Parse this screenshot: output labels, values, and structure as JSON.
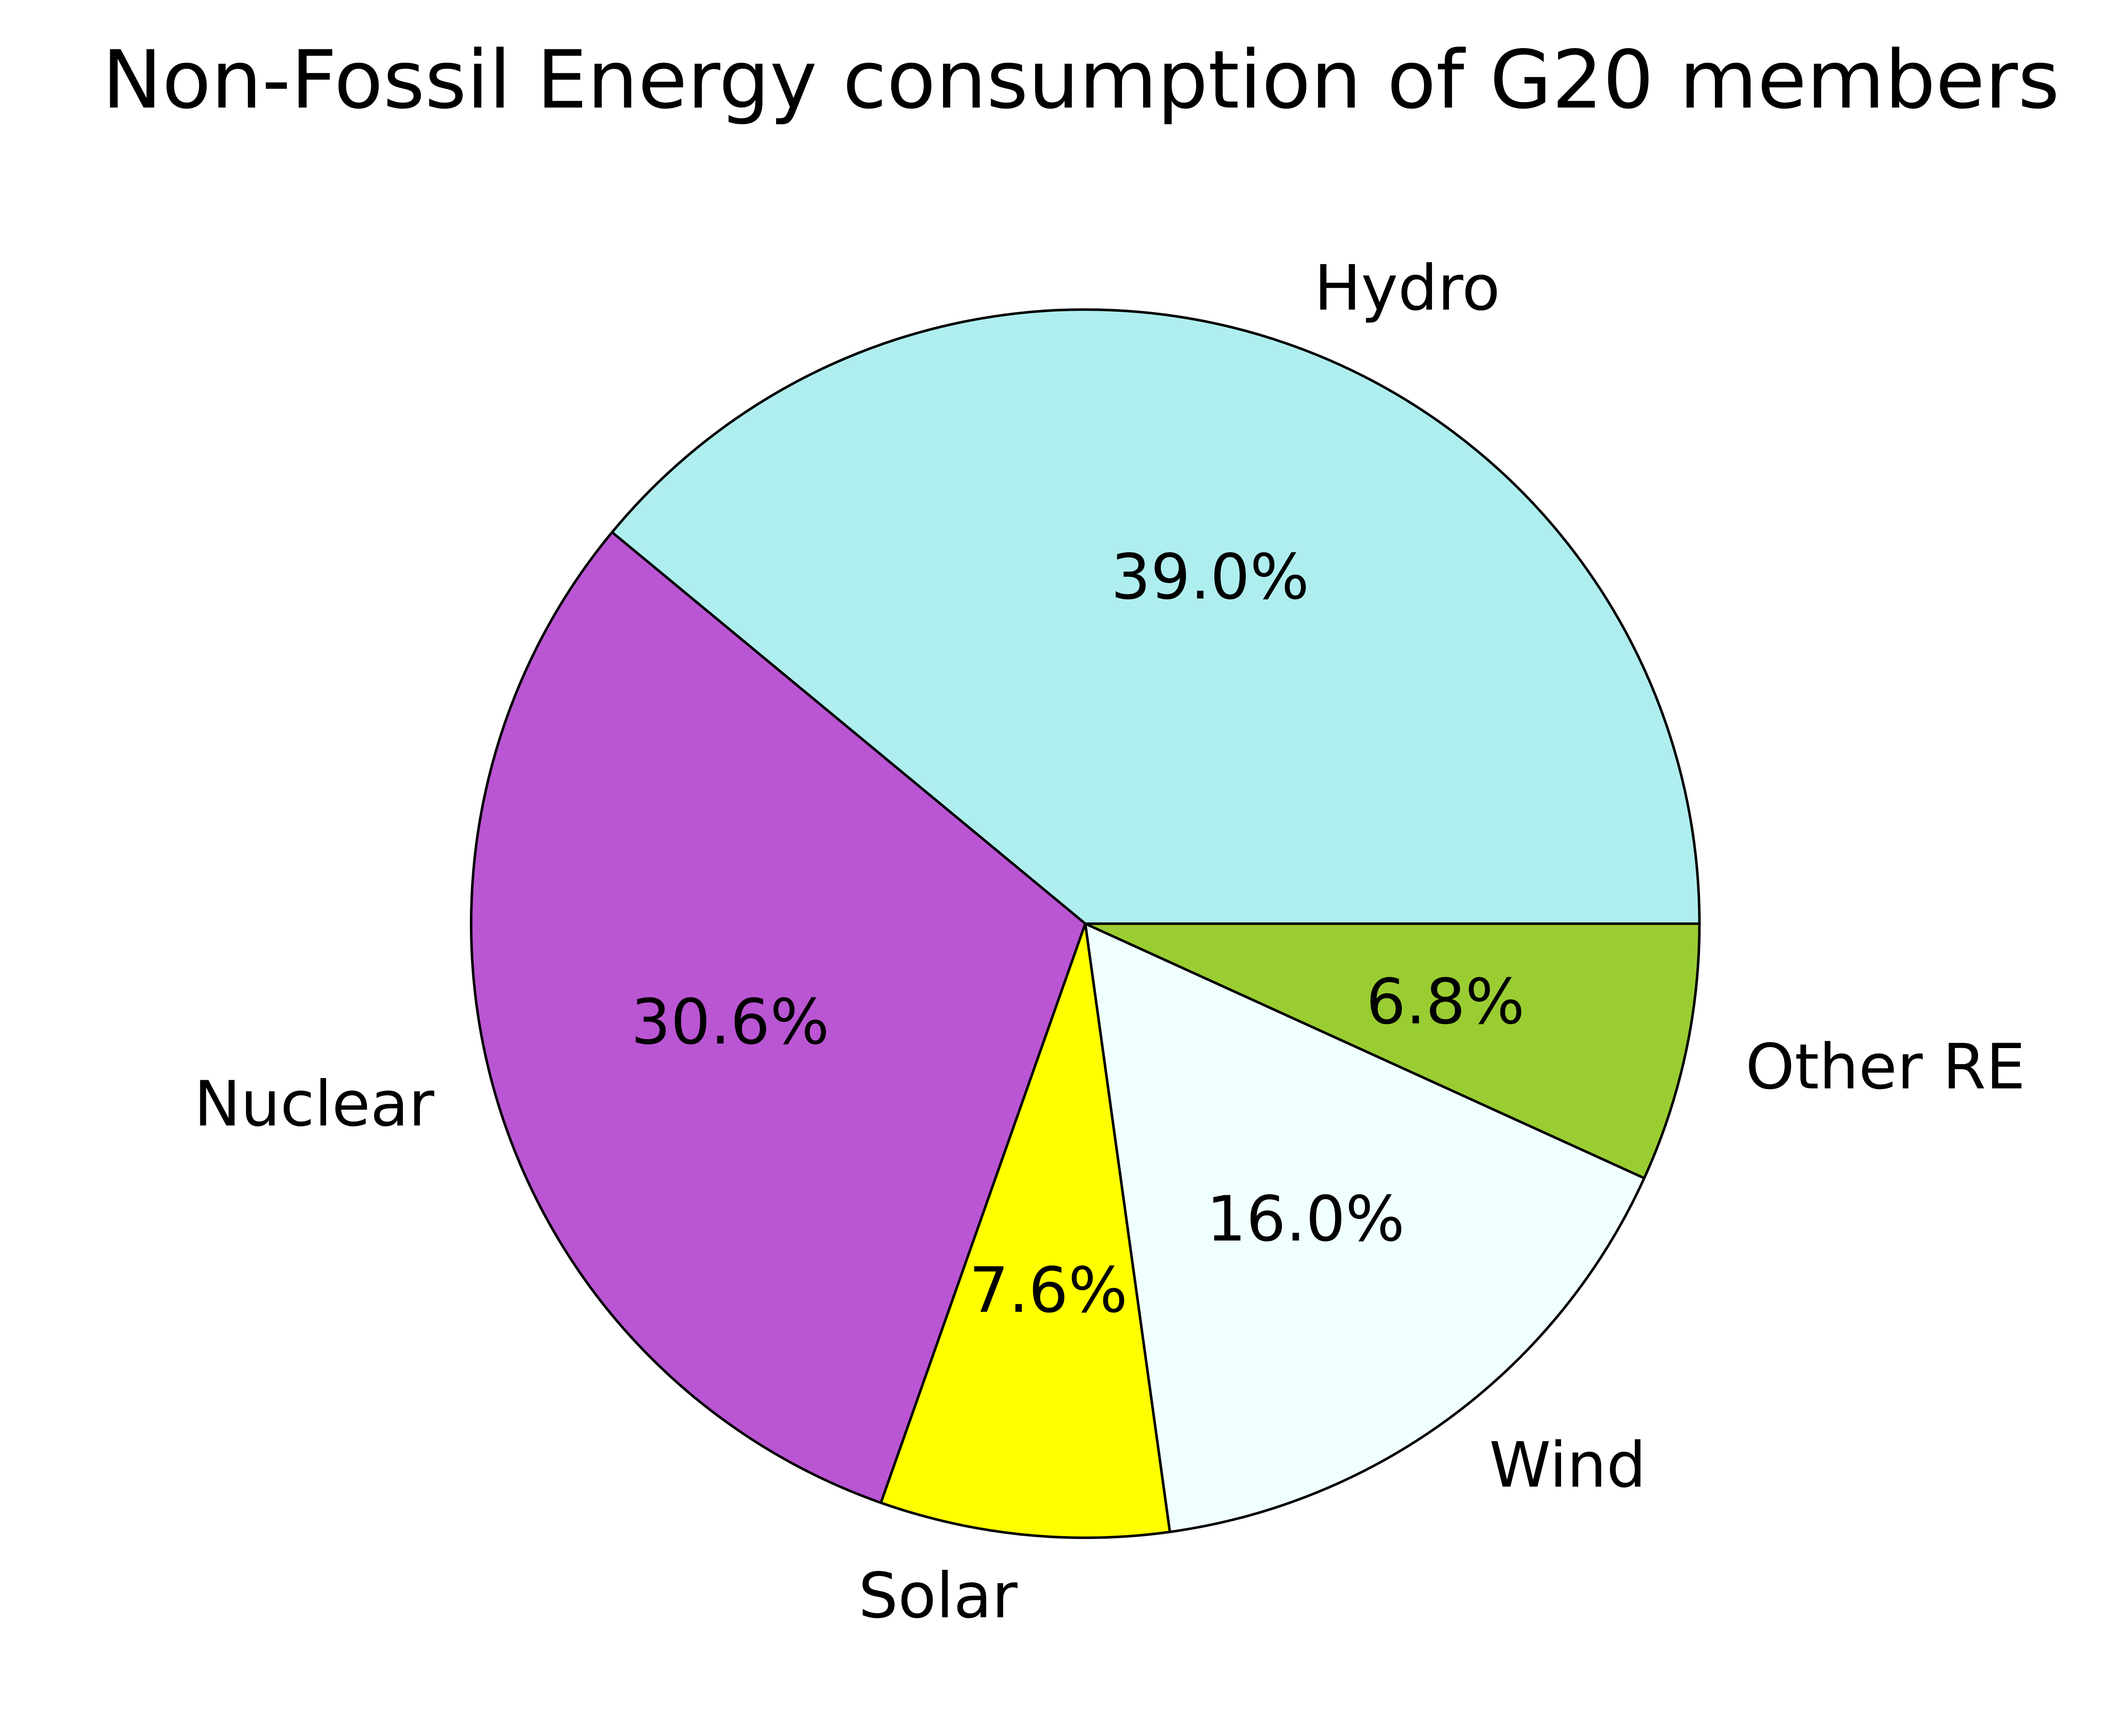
{
  "chart_data": {
    "type": "pie",
    "title": "Non-Fossil Energy consumption of G20 members",
    "categories": [
      "Hydro",
      "Nuclear",
      "Solar",
      "Wind",
      "Other RE"
    ],
    "values": [
      39.0,
      30.6,
      7.6,
      16.0,
      6.8
    ],
    "percent_labels": [
      "39.0%",
      "30.6%",
      "7.6%",
      "16.0%",
      "6.8%"
    ],
    "colors": [
      "#afeeee",
      "#ba55d3",
      "#ffff00",
      "#f0ffff",
      "#9acd32"
    ],
    "edge_color": "#000000",
    "start_angle_deg": 0,
    "direction": "counterclockwise"
  }
}
